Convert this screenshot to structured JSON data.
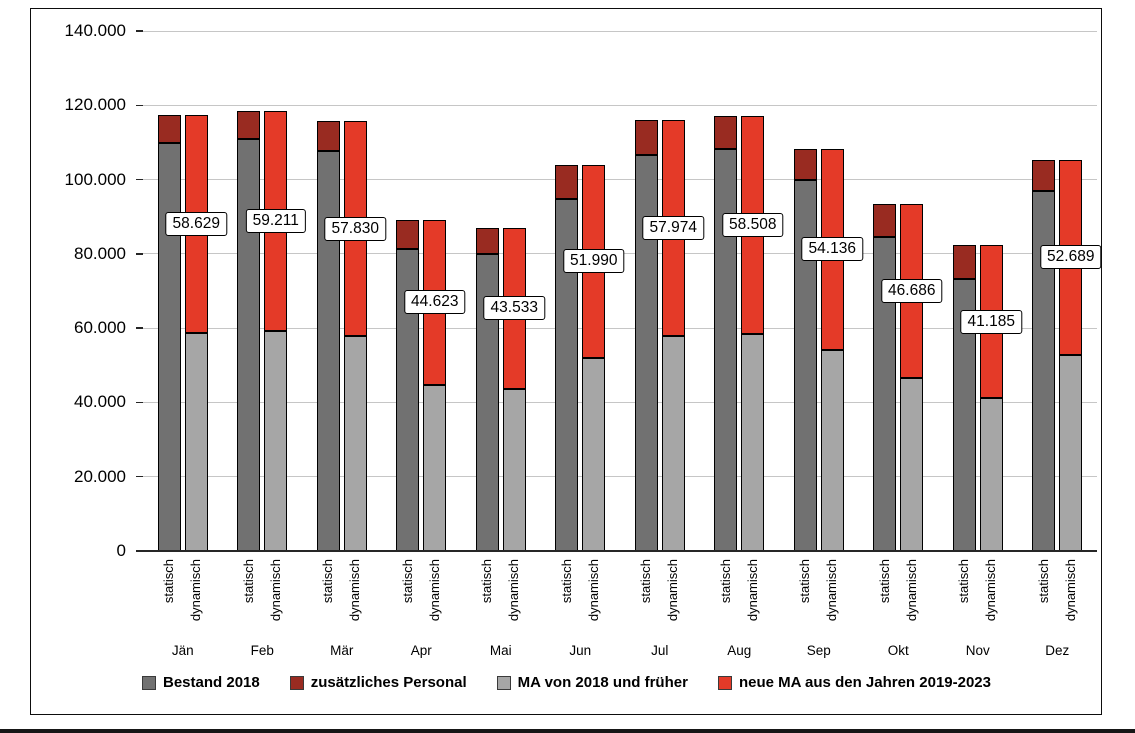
{
  "chart_data": {
    "type": "bar",
    "subtype": "grouped-stacked-columns",
    "title": "",
    "categories": [
      "Jän",
      "Feb",
      "Mär",
      "Apr",
      "Mai",
      "Jun",
      "Jul",
      "Aug",
      "Sep",
      "Okt",
      "Nov",
      "Dez"
    ],
    "sub_categories": [
      "statisch",
      "dynamisch"
    ],
    "series": [
      {
        "name": "Bestand 2018",
        "bar": "statisch",
        "color": "#717171",
        "values": [
          109900,
          110900,
          107600,
          81200,
          80000,
          94900,
          106700,
          108300,
          99900,
          84600,
          73300,
          96800
        ]
      },
      {
        "name": "zusätzliches Personal",
        "bar": "statisch",
        "color": "#992b21",
        "values": [
          7358,
          7522,
          8060,
          8046,
          7066,
          9080,
          9248,
          8716,
          8372,
          8772,
          9070,
          8578
        ]
      },
      {
        "name": "MA von 2018 und früher",
        "bar": "dynamisch",
        "color": "#a6a6a6",
        "values": [
          58629,
          59211,
          57830,
          44623,
          43533,
          51990,
          57974,
          58508,
          54136,
          46686,
          41185,
          52689
        ]
      },
      {
        "name": "neue MA aus den Jahren 2019-2023",
        "bar": "dynamisch",
        "color": "#e43a28",
        "values": [
          58629,
          59211,
          57830,
          44623,
          43533,
          51990,
          57974,
          58508,
          54136,
          46686,
          41185,
          52689
        ]
      }
    ],
    "data_labels": {
      "attached_to": "neue MA aus den Jahren 2019-2023",
      "texts": [
        "58.629",
        "59.211",
        "57.830",
        "44.623",
        "43.533",
        "51.990",
        "57.974",
        "58.508",
        "54.136",
        "46.686",
        "41.185",
        "52.689"
      ]
    },
    "y_axis": {
      "min": 0,
      "max": 140000,
      "step": 20000,
      "tick_labels": [
        "0",
        "20.000",
        "40.000",
        "60.000",
        "80.000",
        "100.000",
        "120.000",
        "140.000"
      ]
    },
    "legend": {
      "position": "bottom",
      "items": [
        {
          "label": "Bestand 2018",
          "color": "#717171"
        },
        {
          "label": "zusätzliches Personal",
          "color": "#992b21"
        },
        {
          "label": "MA von 2018 und früher",
          "color": "#a6a6a6"
        },
        {
          "label": "neue MA aus den Jahren 2019-2023",
          "color": "#e43a28"
        }
      ]
    },
    "grid": true,
    "gridline_color": "#c6c6c6",
    "axis_color": "#262626",
    "data_label_box": {
      "background": "#ffffff",
      "border": "#000000"
    }
  }
}
